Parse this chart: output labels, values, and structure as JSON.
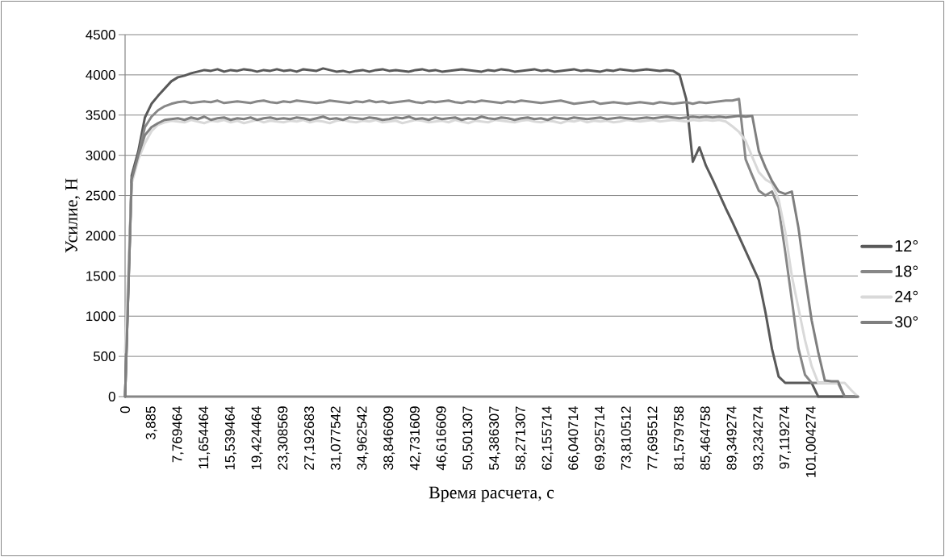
{
  "chart_data": {
    "type": "line",
    "xlabel": "Время расчета, с",
    "ylabel": "Усилие, Н",
    "categories": [
      "0",
      null,
      null,
      null,
      "3,885",
      null,
      null,
      null,
      "7,769464",
      null,
      null,
      null,
      "11,654464",
      null,
      null,
      null,
      "15,539464",
      null,
      null,
      null,
      "19,424464",
      null,
      null,
      null,
      "23,308569",
      null,
      null,
      null,
      "27,192683",
      null,
      null,
      null,
      "31,077542",
      null,
      null,
      null,
      "34,962542",
      null,
      null,
      null,
      "38,846609",
      null,
      null,
      null,
      "42,731609",
      null,
      null,
      null,
      "46,616609",
      null,
      null,
      null,
      "50,501307",
      null,
      null,
      null,
      "54,386307",
      null,
      null,
      null,
      "58,271307",
      null,
      null,
      null,
      "62,155714",
      null,
      null,
      null,
      "66,040714",
      null,
      null,
      null,
      "69,925714",
      null,
      null,
      null,
      "73,810512",
      null,
      null,
      null,
      "77,695512",
      null,
      null,
      null,
      "81,579758",
      null,
      null,
      null,
      "85,464758",
      null,
      null,
      null,
      "89,349274",
      null,
      null,
      null,
      "93,234274",
      null,
      null,
      null,
      "97,119274",
      null,
      null,
      null,
      "101,004274",
      null,
      null,
      null,
      null,
      null,
      null,
      null
    ],
    "ylim": [
      0,
      4500
    ],
    "yticks": [
      0,
      500,
      1000,
      1500,
      2000,
      2500,
      3000,
      3500,
      4000,
      4500
    ],
    "grid": "y",
    "legend": "right",
    "marker": "none",
    "line_style": "solid",
    "series": [
      {
        "name": "12°",
        "color": "#595959",
        "values": [
          0,
          2750,
          3050,
          3470,
          3640,
          3740,
          3830,
          3920,
          3970,
          3990,
          4020,
          4040,
          4060,
          4050,
          4070,
          4040,
          4060,
          4050,
          4070,
          4060,
          4040,
          4060,
          4050,
          4070,
          4050,
          4060,
          4040,
          4070,
          4060,
          4050,
          4080,
          4060,
          4040,
          4050,
          4030,
          4050,
          4060,
          4040,
          4060,
          4070,
          4050,
          4060,
          4050,
          4040,
          4060,
          4070,
          4050,
          4060,
          4040,
          4050,
          4060,
          4070,
          4060,
          4050,
          4040,
          4060,
          4050,
          4070,
          4060,
          4040,
          4050,
          4060,
          4070,
          4050,
          4060,
          4040,
          4050,
          4060,
          4070,
          4050,
          4060,
          4050,
          4040,
          4060,
          4050,
          4070,
          4060,
          4050,
          4060,
          4070,
          4060,
          4050,
          4060,
          4050,
          4000,
          3700,
          2920,
          3100,
          2870,
          2700,
          2520,
          2340,
          2170,
          1990,
          1810,
          1630,
          1450,
          1050,
          590,
          250,
          170,
          170,
          170,
          170,
          170,
          0,
          0,
          0,
          0,
          0,
          0,
          0
        ]
      },
      {
        "name": "18°",
        "color": "#878787",
        "values": [
          0,
          2700,
          3000,
          3350,
          3480,
          3560,
          3610,
          3640,
          3660,
          3670,
          3650,
          3660,
          3670,
          3660,
          3680,
          3650,
          3660,
          3670,
          3660,
          3650,
          3670,
          3680,
          3660,
          3650,
          3670,
          3660,
          3680,
          3670,
          3660,
          3650,
          3660,
          3680,
          3670,
          3660,
          3650,
          3670,
          3660,
          3680,
          3660,
          3670,
          3650,
          3660,
          3670,
          3680,
          3660,
          3650,
          3670,
          3660,
          3670,
          3680,
          3660,
          3650,
          3670,
          3660,
          3680,
          3670,
          3660,
          3650,
          3670,
          3660,
          3680,
          3670,
          3660,
          3650,
          3660,
          3670,
          3680,
          3660,
          3640,
          3650,
          3660,
          3670,
          3640,
          3650,
          3660,
          3650,
          3640,
          3650,
          3660,
          3650,
          3640,
          3660,
          3650,
          3640,
          3650,
          3660,
          3640,
          3660,
          3650,
          3660,
          3670,
          3680,
          3680,
          3700,
          2950,
          2750,
          2560,
          2500,
          2550,
          2350,
          1800,
          1200,
          600,
          270,
          170,
          170,
          170,
          170,
          170,
          0,
          0,
          0
        ]
      },
      {
        "name": "24°",
        "color": "#d9d9d9",
        "values": [
          550,
          2650,
          2950,
          3150,
          3300,
          3380,
          3410,
          3430,
          3420,
          3410,
          3440,
          3420,
          3400,
          3430,
          3420,
          3440,
          3410,
          3430,
          3400,
          3420,
          3440,
          3410,
          3430,
          3420,
          3410,
          3430,
          3420,
          3440,
          3410,
          3430,
          3420,
          3400,
          3430,
          3440,
          3420,
          3410,
          3430,
          3420,
          3440,
          3410,
          3420,
          3430,
          3400,
          3420,
          3440,
          3430,
          3410,
          3420,
          3430,
          3410,
          3440,
          3420,
          3400,
          3430,
          3420,
          3410,
          3440,
          3430,
          3420,
          3410,
          3430,
          3440,
          3420,
          3410,
          3430,
          3420,
          3400,
          3430,
          3420,
          3440,
          3410,
          3430,
          3420,
          3430,
          3410,
          3420,
          3440,
          3430,
          3420,
          3430,
          3440,
          3420,
          3430,
          3440,
          3430,
          3420,
          3440,
          3430,
          3440,
          3430,
          3440,
          3420,
          3360,
          3290,
          3180,
          2980,
          2790,
          2700,
          2650,
          2450,
          2050,
          1500,
          1100,
          700,
          380,
          170,
          170,
          170,
          170,
          170,
          80,
          0
        ]
      },
      {
        "name": "30°",
        "color": "#7f7f7f",
        "values": [
          0,
          2700,
          3000,
          3250,
          3350,
          3400,
          3440,
          3450,
          3460,
          3440,
          3470,
          3450,
          3480,
          3440,
          3460,
          3470,
          3440,
          3460,
          3450,
          3470,
          3440,
          3460,
          3470,
          3450,
          3460,
          3450,
          3470,
          3460,
          3440,
          3460,
          3480,
          3450,
          3460,
          3440,
          3470,
          3460,
          3450,
          3470,
          3460,
          3440,
          3450,
          3470,
          3460,
          3480,
          3450,
          3460,
          3440,
          3470,
          3450,
          3460,
          3470,
          3440,
          3460,
          3450,
          3480,
          3460,
          3450,
          3470,
          3460,
          3440,
          3460,
          3470,
          3450,
          3460,
          3440,
          3470,
          3460,
          3450,
          3470,
          3460,
          3450,
          3460,
          3470,
          3450,
          3460,
          3470,
          3460,
          3450,
          3460,
          3470,
          3460,
          3470,
          3480,
          3470,
          3460,
          3470,
          3480,
          3470,
          3480,
          3470,
          3480,
          3470,
          3480,
          3490,
          3480,
          3490,
          3050,
          2850,
          2680,
          2550,
          2520,
          2550,
          2100,
          1500,
          950,
          550,
          200,
          190,
          190,
          0,
          0,
          0
        ]
      }
    ]
  }
}
